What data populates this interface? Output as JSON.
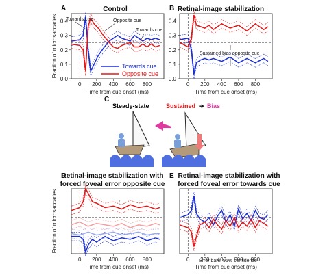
{
  "figure": {
    "panels": {
      "A": {
        "letter": "A",
        "title": "Control"
      },
      "B": {
        "letter": "B",
        "title": "Retinal-image stabilization"
      },
      "C": {
        "letter": "C",
        "steady_state": "Steady-state",
        "sustained": "Sustained",
        "bias": "Bias"
      },
      "D": {
        "letter": "D",
        "title_line1": "Retinal-image stabilization with",
        "title_line2": "forced foveal error opposite cue"
      },
      "E": {
        "letter": "E",
        "title_line1": "Retinal-image stabilization with",
        "title_line2": "forced foveal error towards cue"
      }
    },
    "ylabel": "Fraction of microsaccades",
    "xlabel": "Time from cue onset (ms)",
    "annotations": {
      "towards_cue_A1": "Towards cue",
      "opposite_cue_A": "Opposite cue",
      "towards_cue_A2": "Towards cue",
      "sustained_bias_B": "Sustained bias opposite cue",
      "error_bars_E": "Error bars: 95% confidence"
    },
    "legend": {
      "towards": "Towards cue",
      "opposite": "Opposite cue"
    }
  },
  "colors": {
    "towards": "#1a2fd0",
    "opposite": "#e01818",
    "light_red": "#f4a0a0",
    "light_blue": "#9aa8ee",
    "sea": "#4f6fe0",
    "sail_accent": "#e03aa0"
  },
  "chart_data": [
    {
      "panel": "A",
      "type": "line",
      "xlim": [
        -100,
        1000
      ],
      "ylim": [
        0.0,
        0.45
      ],
      "xticks": [
        0,
        200,
        400,
        600,
        800
      ],
      "yticks": [
        0.0,
        0.1,
        0.2,
        0.3,
        0.4
      ],
      "baseline": 0.25,
      "series": [
        {
          "name": "Towards cue",
          "x": [
            -100,
            0,
            40,
            70,
            100,
            130,
            170,
            220,
            280,
            350,
            400,
            450,
            500,
            550,
            600,
            650,
            700,
            750,
            800,
            850,
            900,
            950
          ],
          "y": [
            0.26,
            0.27,
            0.3,
            0.43,
            0.2,
            0.05,
            0.1,
            0.16,
            0.21,
            0.26,
            0.28,
            0.3,
            0.28,
            0.27,
            0.26,
            0.3,
            0.28,
            0.26,
            0.28,
            0.27,
            0.28,
            0.27
          ]
        },
        {
          "name": "Opposite cue",
          "x": [
            -100,
            0,
            40,
            70,
            100,
            130,
            170,
            220,
            280,
            350,
            400,
            450,
            500,
            550,
            600,
            650,
            700,
            750,
            800,
            850,
            900,
            950
          ],
          "y": [
            0.24,
            0.23,
            0.2,
            0.05,
            0.36,
            0.42,
            0.38,
            0.35,
            0.3,
            0.25,
            0.22,
            0.21,
            0.23,
            0.24,
            0.25,
            0.22,
            0.22,
            0.24,
            0.22,
            0.24,
            0.22,
            0.23
          ]
        }
      ]
    },
    {
      "panel": "B",
      "type": "line",
      "xlim": [
        -100,
        1000
      ],
      "ylim": [
        0.0,
        0.45
      ],
      "xticks": [
        0,
        200,
        400,
        600,
        800
      ],
      "yticks": [
        0.0,
        0.1,
        0.2,
        0.3,
        0.4
      ],
      "baseline": 0.25,
      "series": [
        {
          "name": "Towards cue",
          "x": [
            -100,
            0,
            40,
            70,
            100,
            150,
            200,
            250,
            300,
            400,
            500,
            600,
            700,
            800,
            900,
            950
          ],
          "y": [
            0.27,
            0.28,
            0.2,
            0.03,
            0.11,
            0.13,
            0.14,
            0.13,
            0.14,
            0.12,
            0.15,
            0.11,
            0.14,
            0.11,
            0.14,
            0.12
          ]
        },
        {
          "name": "Opposite cue",
          "x": [
            -100,
            0,
            40,
            70,
            100,
            150,
            200,
            250,
            300,
            400,
            500,
            600,
            700,
            800,
            900,
            950
          ],
          "y": [
            0.25,
            0.22,
            0.28,
            0.44,
            0.37,
            0.36,
            0.35,
            0.37,
            0.34,
            0.38,
            0.35,
            0.37,
            0.33,
            0.38,
            0.34,
            0.36
          ]
        }
      ]
    },
    {
      "panel": "D",
      "type": "line",
      "xlim": [
        -100,
        1000
      ],
      "ylim": [
        0.0,
        0.45
      ],
      "xticks": [
        0,
        200,
        400,
        600,
        800
      ],
      "baseline": 0.25,
      "series": [
        {
          "name": "Towards cue",
          "x": [
            -100,
            0,
            40,
            70,
            100,
            150,
            200,
            300,
            400,
            500,
            600,
            700,
            800,
            900,
            950
          ],
          "y": [
            0.12,
            0.12,
            0.1,
            0.01,
            0.06,
            0.1,
            0.08,
            0.12,
            0.09,
            0.11,
            0.1,
            0.12,
            0.09,
            0.11,
            0.1
          ]
        },
        {
          "name": "Opposite cue",
          "x": [
            -100,
            0,
            40,
            70,
            100,
            150,
            200,
            300,
            400,
            500,
            600,
            700,
            800,
            900,
            950
          ],
          "y": [
            0.3,
            0.32,
            0.36,
            0.45,
            0.42,
            0.36,
            0.35,
            0.32,
            0.33,
            0.31,
            0.34,
            0.32,
            0.33,
            0.31,
            0.32
          ]
        },
        {
          "x": [
            -100,
            0,
            100,
            200,
            300,
            400,
            500,
            600,
            700,
            800,
            900,
            950
          ],
          "y": [
            0.2,
            0.22,
            0.19,
            0.21,
            0.2,
            0.19,
            0.21,
            0.18,
            0.2,
            0.19,
            0.21,
            0.2
          ]
        },
        {
          "x": [
            -100,
            0,
            100,
            200,
            300,
            400,
            500,
            600,
            700,
            800,
            900,
            950
          ],
          "y": [
            0.14,
            0.13,
            0.15,
            0.13,
            0.14,
            0.15,
            0.13,
            0.14,
            0.15,
            0.13,
            0.14,
            0.14
          ]
        }
      ]
    },
    {
      "panel": "E",
      "type": "line",
      "xlim": [
        -100,
        1000
      ],
      "ylim": [
        0.0,
        0.45
      ],
      "xticks": [
        0,
        200,
        400,
        600,
        800
      ],
      "baseline": 0.25,
      "series": [
        {
          "name": "Towards cue",
          "x": [
            -100,
            0,
            40,
            70,
            100,
            140,
            200,
            250,
            300,
            350,
            400,
            450,
            500,
            550,
            600,
            650,
            700,
            750,
            800,
            850,
            900,
            950
          ],
          "y": [
            0.25,
            0.27,
            0.3,
            0.4,
            0.28,
            0.24,
            0.22,
            0.25,
            0.2,
            0.26,
            0.3,
            0.22,
            0.27,
            0.19,
            0.31,
            0.24,
            0.28,
            0.23,
            0.3,
            0.25,
            0.24,
            0.27
          ]
        },
        {
          "name": "Opposite cue",
          "x": [
            -100,
            0,
            40,
            70,
            100,
            140,
            200,
            250,
            300,
            350,
            400,
            450,
            500,
            550,
            600,
            650,
            700,
            750,
            800,
            850,
            900,
            950
          ],
          "y": [
            0.2,
            0.18,
            0.15,
            0.05,
            0.12,
            0.2,
            0.22,
            0.18,
            0.24,
            0.2,
            0.17,
            0.23,
            0.19,
            0.25,
            0.18,
            0.22,
            0.19,
            0.24,
            0.18,
            0.23,
            0.21,
            0.19
          ]
        }
      ]
    }
  ]
}
